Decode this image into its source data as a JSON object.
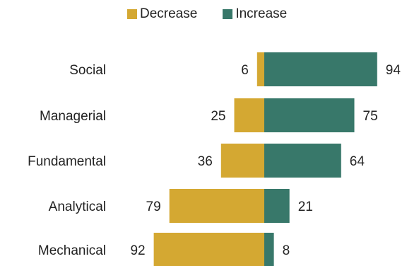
{
  "chart_data": {
    "type": "bar",
    "orientation": "horizontal-diverging",
    "categories": [
      "Social",
      "Managerial",
      "Fundamental",
      "Analytical",
      "Mechanical"
    ],
    "series": [
      {
        "name": "Decrease",
        "values": [
          6,
          25,
          36,
          79,
          92
        ],
        "color": "#D4A832"
      },
      {
        "name": "Increase",
        "values": [
          94,
          75,
          64,
          21,
          8
        ],
        "color": "#38786A"
      }
    ],
    "title": "",
    "xlabel": "",
    "ylabel": "",
    "grid": false,
    "legend_position": "top"
  }
}
